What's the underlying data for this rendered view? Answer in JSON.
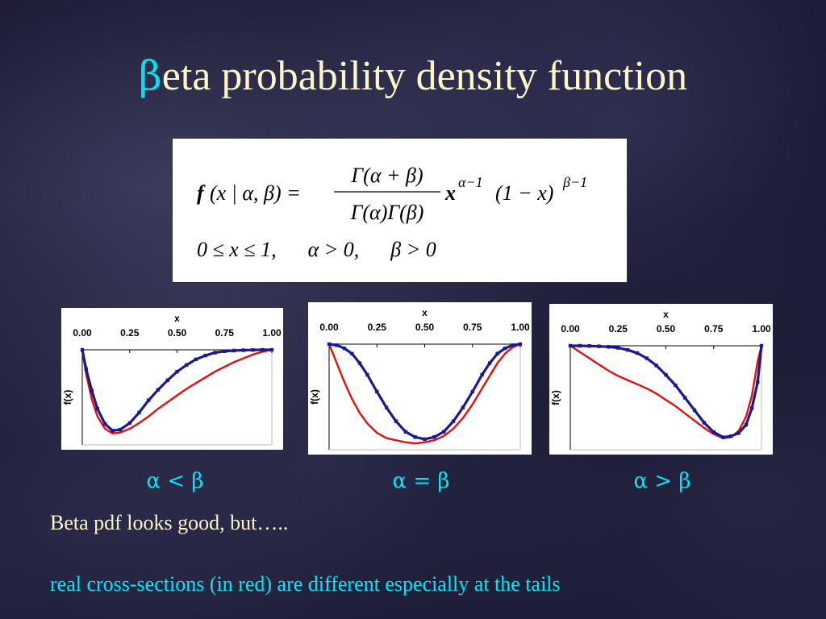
{
  "slide": {
    "title_letter": "β",
    "title_rest": "eta probability density function",
    "comment_1": "Beta pdf looks good, but…..",
    "comment_2": "real cross-sections (in red) are different especially at the tails"
  },
  "formula": {
    "lhs_f": "f",
    "lhs_rest": "(x | α, β) =",
    "numerator": "Γ(α + β)",
    "denominator": "Γ(α)Γ(β)",
    "x": "x",
    "x_exp": "α−1",
    "factor": "(1 − x)",
    "factor_exp": "β−1",
    "constraints": "0 ≤ x ≤ 1,      α > 0,      β > 0"
  },
  "colors": {
    "fit_series": "#1a1a8c",
    "data_series": "#e01010",
    "title_highlight": "#00e0f0",
    "title_text": "#fbf5c8"
  },
  "chart_data": [
    {
      "type": "line",
      "condition": "α < β",
      "xlabel": "x",
      "ylabel": "f(x)",
      "xticks": [
        "0.00",
        "0.25",
        "0.50",
        "0.75",
        "1.00"
      ],
      "xlim": [
        0,
        1
      ],
      "ylim": [
        0,
        1
      ],
      "series": [
        {
          "role": "fit",
          "style": "markers",
          "x": [
            0.0,
            0.02,
            0.05,
            0.08,
            0.12,
            0.16,
            0.2,
            0.25,
            0.3,
            0.35,
            0.4,
            0.45,
            0.5,
            0.55,
            0.6,
            0.65,
            0.7,
            0.75,
            0.8,
            0.85,
            0.9,
            0.95,
            1.0
          ],
          "y": [
            0.0,
            0.2,
            0.43,
            0.62,
            0.78,
            0.85,
            0.84,
            0.77,
            0.66,
            0.53,
            0.42,
            0.32,
            0.23,
            0.16,
            0.1,
            0.06,
            0.03,
            0.015,
            0.008,
            0.004,
            0.002,
            0.0,
            0.0
          ]
        },
        {
          "role": "measured",
          "style": "line",
          "x": [
            0.0,
            0.02,
            0.05,
            0.08,
            0.12,
            0.16,
            0.2,
            0.25,
            0.3,
            0.35,
            0.4,
            0.45,
            0.5,
            0.55,
            0.6,
            0.65,
            0.7,
            0.75,
            0.8,
            0.85,
            0.9,
            0.95,
            1.0
          ],
          "y": [
            0.0,
            0.25,
            0.52,
            0.7,
            0.83,
            0.88,
            0.87,
            0.83,
            0.77,
            0.7,
            0.62,
            0.55,
            0.48,
            0.41,
            0.35,
            0.29,
            0.23,
            0.18,
            0.13,
            0.09,
            0.05,
            0.02,
            0.0
          ]
        }
      ]
    },
    {
      "type": "line",
      "condition": "α = β",
      "xlabel": "x",
      "ylabel": "f(x)",
      "xticks": [
        "0.00",
        "0.25",
        "0.50",
        "0.75",
        "1.00"
      ],
      "xlim": [
        0,
        1
      ],
      "ylim": [
        0,
        1
      ],
      "series": [
        {
          "role": "fit",
          "style": "markers",
          "x": [
            0.0,
            0.04,
            0.08,
            0.12,
            0.16,
            0.2,
            0.25,
            0.3,
            0.35,
            0.4,
            0.45,
            0.5,
            0.55,
            0.6,
            0.65,
            0.7,
            0.75,
            0.8,
            0.84,
            0.88,
            0.92,
            0.96,
            1.0
          ],
          "y": [
            0.0,
            0.01,
            0.04,
            0.09,
            0.18,
            0.29,
            0.45,
            0.6,
            0.73,
            0.83,
            0.88,
            0.9,
            0.88,
            0.83,
            0.73,
            0.6,
            0.45,
            0.29,
            0.18,
            0.09,
            0.04,
            0.01,
            0.0
          ]
        },
        {
          "role": "measured",
          "style": "line",
          "x": [
            0.0,
            0.04,
            0.08,
            0.12,
            0.16,
            0.2,
            0.25,
            0.3,
            0.35,
            0.4,
            0.45,
            0.5,
            0.55,
            0.6,
            0.65,
            0.7,
            0.75,
            0.8,
            0.84,
            0.88,
            0.92,
            0.96,
            1.0
          ],
          "y": [
            0.0,
            0.18,
            0.36,
            0.52,
            0.65,
            0.75,
            0.84,
            0.89,
            0.91,
            0.93,
            0.94,
            0.93,
            0.91,
            0.87,
            0.8,
            0.7,
            0.57,
            0.42,
            0.3,
            0.18,
            0.09,
            0.03,
            0.0
          ]
        }
      ]
    },
    {
      "type": "line",
      "condition": "α > β",
      "xlabel": "x",
      "ylabel": "f(x)",
      "xticks": [
        "0.00",
        "0.25",
        "0.50",
        "0.75",
        "1.00"
      ],
      "xlim": [
        0,
        1
      ],
      "ylim": [
        0,
        1
      ],
      "series": [
        {
          "role": "fit",
          "style": "markers",
          "x": [
            0.0,
            0.05,
            0.1,
            0.15,
            0.2,
            0.25,
            0.3,
            0.35,
            0.4,
            0.45,
            0.5,
            0.55,
            0.6,
            0.65,
            0.7,
            0.75,
            0.8,
            0.84,
            0.88,
            0.92,
            0.95,
            0.98,
            1.0
          ],
          "y": [
            0.0,
            0.0,
            0.002,
            0.005,
            0.01,
            0.02,
            0.04,
            0.07,
            0.12,
            0.19,
            0.28,
            0.38,
            0.5,
            0.62,
            0.74,
            0.83,
            0.88,
            0.87,
            0.84,
            0.76,
            0.6,
            0.35,
            0.0
          ]
        },
        {
          "role": "measured",
          "style": "line",
          "x": [
            0.0,
            0.05,
            0.1,
            0.15,
            0.2,
            0.25,
            0.3,
            0.35,
            0.4,
            0.45,
            0.5,
            0.55,
            0.6,
            0.65,
            0.7,
            0.75,
            0.8,
            0.84,
            0.88,
            0.92,
            0.95,
            0.98,
            1.0
          ],
          "y": [
            0.0,
            0.06,
            0.12,
            0.18,
            0.24,
            0.29,
            0.33,
            0.37,
            0.41,
            0.46,
            0.52,
            0.58,
            0.65,
            0.72,
            0.79,
            0.85,
            0.89,
            0.88,
            0.82,
            0.68,
            0.48,
            0.15,
            0.0
          ]
        }
      ]
    }
  ]
}
